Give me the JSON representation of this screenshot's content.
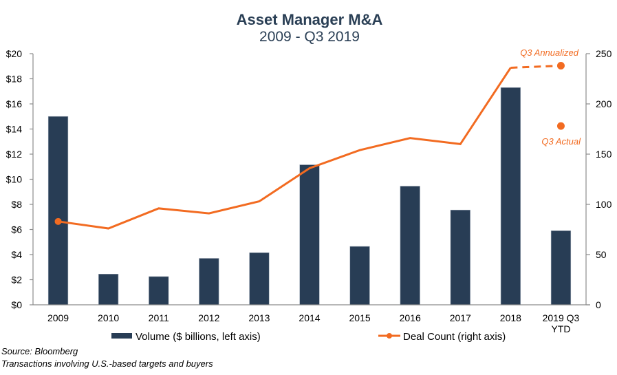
{
  "chart_data": {
    "type": "bar",
    "title": "Asset Manager M&A",
    "subtitle": "2009 - Q3 2019",
    "categories": [
      "2009",
      "2010",
      "2011",
      "2012",
      "2013",
      "2014",
      "2015",
      "2016",
      "2017",
      "2018",
      "2019 Q3\nYTD"
    ],
    "category_lines": [
      [
        "2009"
      ],
      [
        "2010"
      ],
      [
        "2011"
      ],
      [
        "2012"
      ],
      [
        "2013"
      ],
      [
        "2014"
      ],
      [
        "2015"
      ],
      [
        "2016"
      ],
      [
        "2017"
      ],
      [
        "2018"
      ],
      [
        "2019 Q3",
        "YTD"
      ]
    ],
    "series": [
      {
        "name": "Volume ($ billions, left axis)",
        "type": "bar",
        "axis": "left",
        "color": "#283d55",
        "values": [
          15.0,
          2.45,
          2.25,
          3.7,
          4.15,
          11.15,
          4.65,
          9.45,
          7.55,
          17.3,
          5.9
        ]
      },
      {
        "name": "Deal Count (right axis)",
        "type": "line",
        "axis": "right",
        "color": "#f26b21",
        "values": [
          83,
          76,
          96,
          91,
          103,
          136,
          154,
          166,
          160,
          236,
          null
        ]
      }
    ],
    "extra_points": [
      {
        "category": "2019 Q3\nYTD",
        "value": 238,
        "label": "Q3 Annualized",
        "connected_dashed_from": "2018"
      },
      {
        "category": "2019 Q3\nYTD",
        "value": 178,
        "label": "Q3 Actual"
      }
    ],
    "left_axis": {
      "ylim": [
        0,
        20
      ],
      "ticks": [
        0,
        2,
        4,
        6,
        8,
        10,
        12,
        14,
        16,
        18,
        20
      ],
      "tick_labels": [
        "$0",
        "$2",
        "$4",
        "$6",
        "$8",
        "$10",
        "$12",
        "$14",
        "$16",
        "$18",
        "$20"
      ]
    },
    "right_axis": {
      "ylim": [
        0,
        250
      ],
      "ticks": [
        0,
        50,
        100,
        150,
        200,
        250
      ],
      "tick_labels": [
        "0",
        "50",
        "100",
        "150",
        "200",
        "250"
      ]
    },
    "xlabel": "",
    "ylabel": "",
    "grid": false,
    "legend_placement": "bottom"
  },
  "notes": {
    "source": "Source: Bloomberg",
    "description": "Transactions involving U.S.-based targets and buyers"
  }
}
